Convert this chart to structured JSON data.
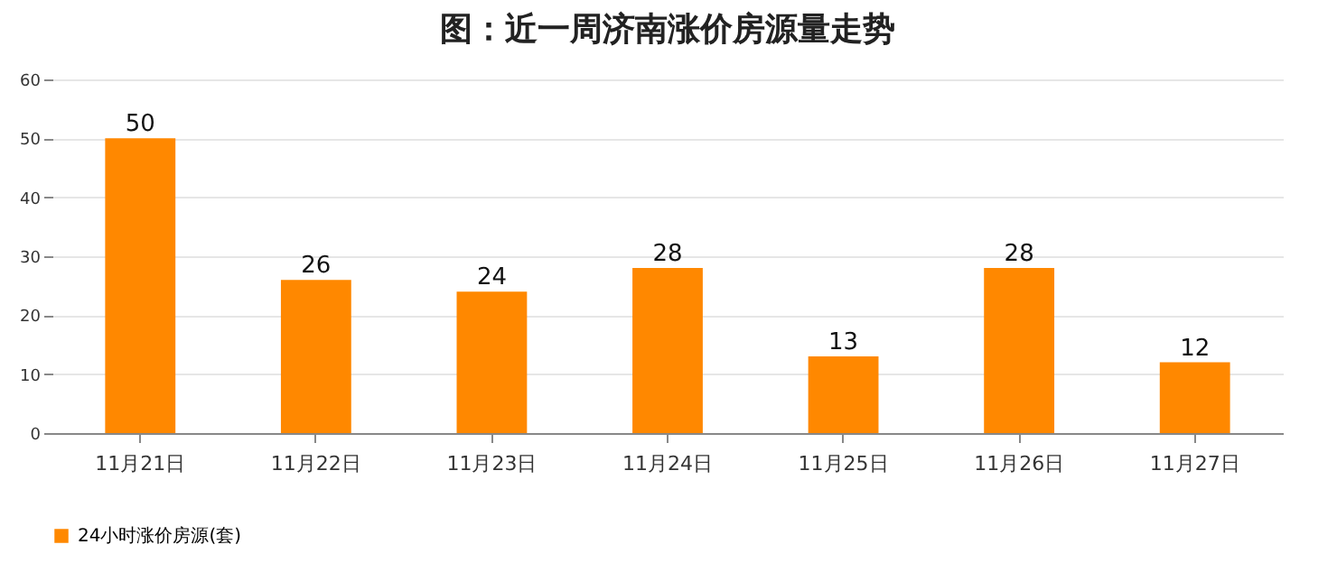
{
  "chart_data": {
    "type": "bar",
    "title": "图：近一周济南涨价房源量走势",
    "categories": [
      "11月21日",
      "11月22日",
      "11月23日",
      "11月24日",
      "11月25日",
      "11月26日",
      "11月27日"
    ],
    "series": [
      {
        "name": "24小时涨价房源(套)",
        "color": "#ff8800",
        "values": [
          50,
          26,
          24,
          28,
          13,
          28,
          12
        ]
      }
    ],
    "ylim": [
      0,
      60
    ],
    "yticks": [
      0,
      10,
      20,
      30,
      40,
      50,
      60
    ],
    "grid": "y",
    "legend": "bottom",
    "data_labels": true
  }
}
